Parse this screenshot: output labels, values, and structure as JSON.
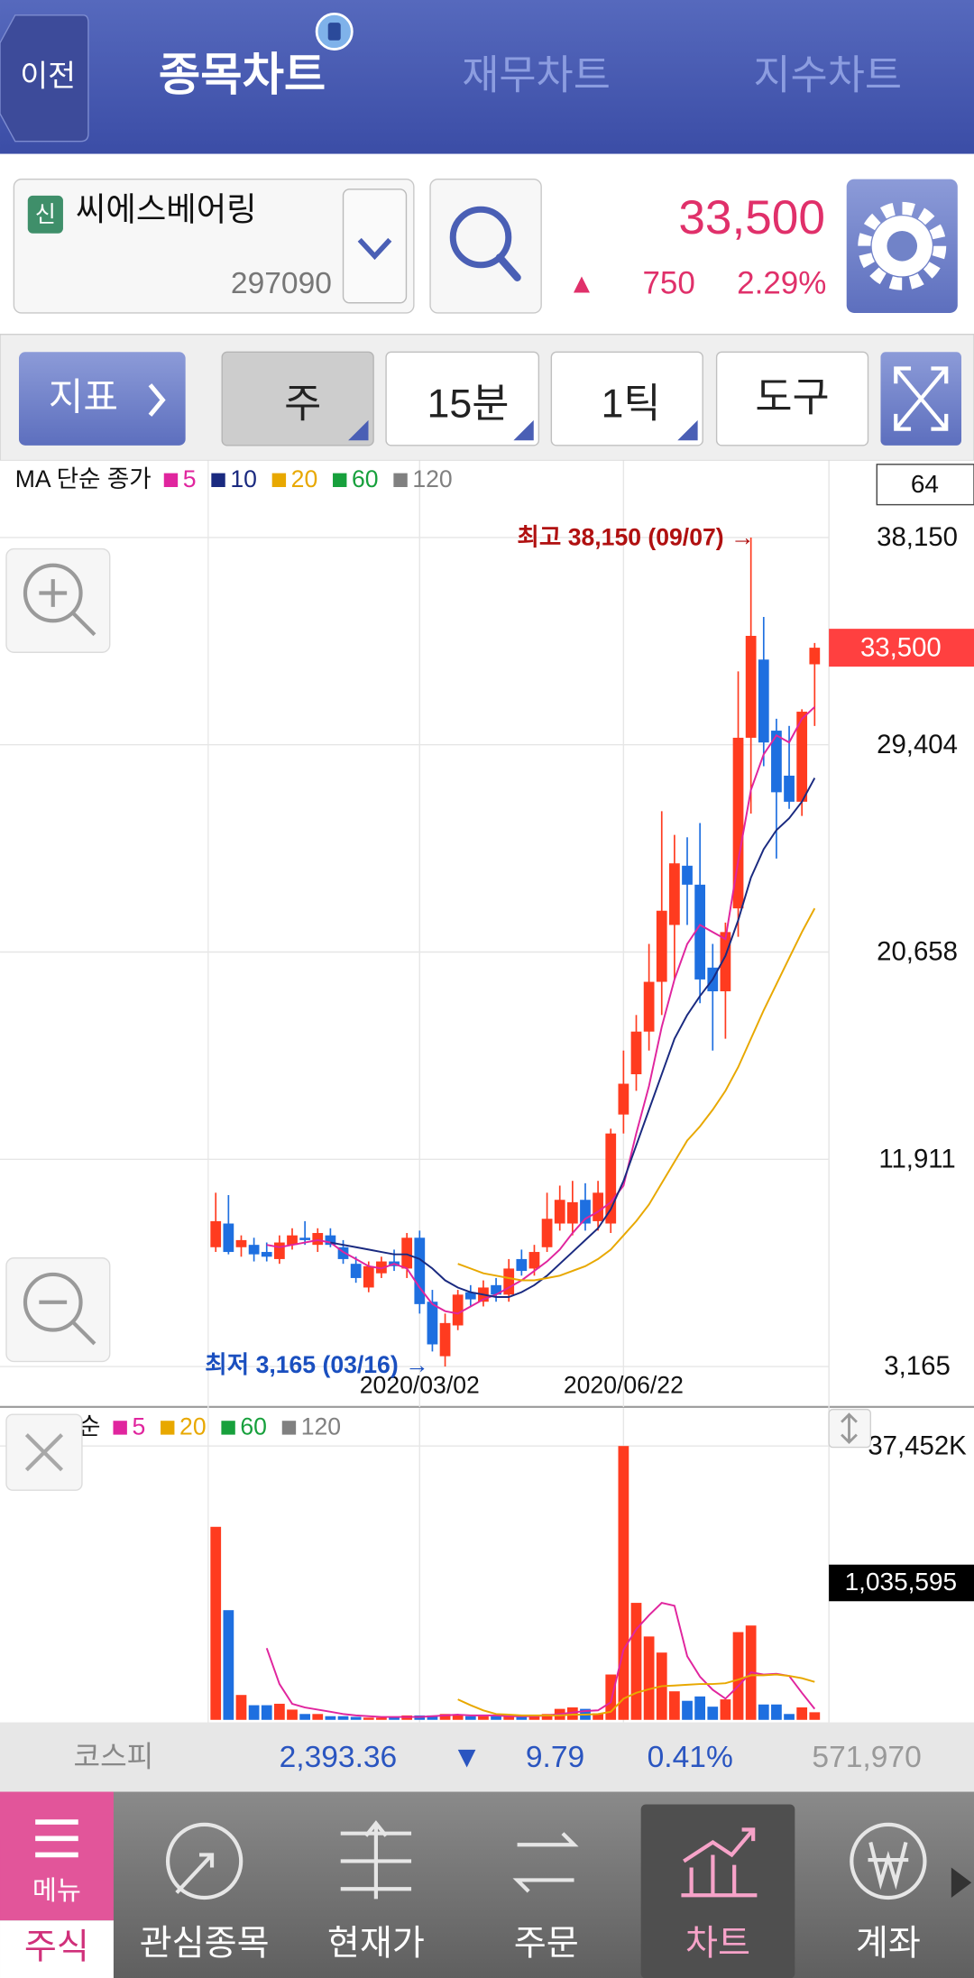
{
  "header": {
    "back": "이전",
    "tabs": [
      "종목차트",
      "재무차트",
      "지수차트"
    ]
  },
  "stock": {
    "badge": "신",
    "name": "씨에스베어링",
    "code": "297090",
    "price": "33,500",
    "change_sign": "▲",
    "change": "750",
    "change_pct": "2.29%"
  },
  "toolbar": {
    "indicator": "지표",
    "buttons": [
      "주",
      "15분",
      "1틱",
      "도구"
    ]
  },
  "chart_data": [
    {
      "type": "candlestick",
      "legend_title": "MA 단순 종가",
      "categories": [
        null,
        null,
        null,
        null,
        null,
        null,
        null,
        null,
        null,
        null,
        null,
        null,
        null,
        null,
        null,
        null,
        "2020/03/02",
        null,
        null,
        null,
        null,
        null,
        null,
        null,
        null,
        null,
        null,
        null,
        null,
        null,
        null,
        null,
        "2020/06/22",
        null,
        null,
        null,
        null,
        null,
        null,
        null,
        null,
        null,
        null,
        null,
        null,
        null,
        null,
        null
      ],
      "open": [
        8200,
        9200,
        8200,
        8300,
        8000,
        7700,
        8300,
        8600,
        8300,
        8700,
        8200,
        7500,
        6500,
        7100,
        7600,
        7300,
        8600,
        5900,
        3600,
        4900,
        6300,
        5900,
        6600,
        6200,
        7700,
        7300,
        8200,
        9200,
        9200,
        10200,
        9300,
        9200,
        13800,
        15500,
        17300,
        19400,
        21800,
        24300,
        23500,
        20000,
        19000,
        22500,
        29700,
        33000,
        30000,
        28100,
        27000,
        32800
      ],
      "high": [
        10500,
        10400,
        8700,
        8600,
        8400,
        8700,
        9000,
        9300,
        9000,
        9000,
        8500,
        7800,
        7600,
        7800,
        8100,
        8800,
        8900,
        6400,
        5400,
        6400,
        6600,
        6800,
        6900,
        7700,
        8100,
        8300,
        10500,
        10800,
        11000,
        10900,
        11000,
        13200,
        16500,
        18000,
        21000,
        26600,
        25600,
        25500,
        26100,
        21000,
        21900,
        32500,
        38150,
        34800,
        30500,
        30200,
        30900,
        33700
      ],
      "low": [
        8000,
        7900,
        7800,
        7600,
        7600,
        7500,
        8100,
        8300,
        8000,
        8200,
        7500,
        6700,
        6300,
        6900,
        7200,
        6900,
        5400,
        3800,
        3165,
        4700,
        5700,
        5700,
        5900,
        5900,
        7000,
        7000,
        8000,
        8900,
        8700,
        8900,
        8900,
        8800,
        13000,
        14800,
        16500,
        18000,
        19500,
        21800,
        18500,
        16500,
        17000,
        21300,
        26500,
        28500,
        24600,
        26700,
        26400,
        30200
      ],
      "close": [
        9300,
        8000,
        8500,
        7900,
        7800,
        8400,
        8700,
        8500,
        8800,
        8300,
        7700,
        6900,
        7400,
        7600,
        7400,
        8600,
        5800,
        4100,
        5000,
        6200,
        6000,
        6500,
        6200,
        7300,
        7200,
        8000,
        9400,
        10200,
        10100,
        9200,
        10500,
        13000,
        15100,
        17300,
        19400,
        22400,
        24400,
        23500,
        19500,
        19000,
        21500,
        29700,
        34000,
        29500,
        27400,
        27000,
        30800,
        33500
      ],
      "up_color": "#ff3b1f",
      "down_color": "#1e6fe0",
      "series": [
        {
          "name": "5",
          "color": "#e0259e",
          "values": [
            null,
            null,
            null,
            null,
            8300,
            8200,
            8300,
            8400,
            8500,
            8400,
            8000,
            7700,
            7400,
            7300,
            7500,
            7300,
            6500,
            5800,
            5500,
            5400,
            5700,
            6000,
            6200,
            6500,
            6800,
            7200,
            7600,
            8100,
            8800,
            9400,
            9700,
            10100,
            10800,
            13000,
            15000,
            17500,
            19500,
            21000,
            21800,
            21500,
            21200,
            24500,
            27500,
            29000,
            29800,
            29500,
            30500,
            31000
          ]
        },
        {
          "name": "10",
          "color": "#1a2a80",
          "values": [
            null,
            null,
            null,
            null,
            null,
            null,
            null,
            null,
            null,
            8400,
            8300,
            8200,
            8100,
            8000,
            7900,
            7900,
            7700,
            7300,
            6800,
            6500,
            6300,
            6200,
            6100,
            6100,
            6300,
            6600,
            7000,
            7500,
            8000,
            8500,
            9000,
            9800,
            11000,
            12500,
            14000,
            15500,
            17000,
            18000,
            18800,
            19500,
            20500,
            22000,
            23800,
            25000,
            25800,
            26300,
            27000,
            28000
          ]
        },
        {
          "name": "20",
          "color": "#e8a800",
          "values": [
            null,
            null,
            null,
            null,
            null,
            null,
            null,
            null,
            null,
            null,
            null,
            null,
            null,
            null,
            null,
            null,
            null,
            null,
            null,
            7500,
            7300,
            7100,
            7000,
            6900,
            6800,
            6800,
            6900,
            7000,
            7200,
            7400,
            7700,
            8100,
            8700,
            9300,
            10000,
            10900,
            11800,
            12700,
            13300,
            14000,
            14800,
            15800,
            17000,
            18200,
            19300,
            20400,
            21500,
            22500
          ]
        },
        {
          "name": "60",
          "color": "#17a03c",
          "values": [
            null,
            null,
            null,
            null,
            null,
            null,
            null,
            null,
            null,
            null,
            null,
            null,
            null,
            null,
            null,
            null,
            null,
            null,
            null,
            null,
            null,
            null,
            null,
            null,
            null,
            null,
            null,
            null,
            null,
            null,
            null,
            null,
            null,
            null,
            null,
            null,
            null,
            null,
            null,
            null,
            null,
            null,
            null,
            null,
            null,
            null,
            null,
            null
          ]
        },
        {
          "name": "120",
          "color": "#808080",
          "values": [
            null,
            null,
            null,
            null,
            null,
            null,
            null,
            null,
            null,
            null,
            null,
            null,
            null,
            null,
            null,
            null,
            null,
            null,
            null,
            null,
            null,
            null,
            null,
            null,
            null,
            null,
            null,
            null,
            null,
            null,
            null,
            null,
            null,
            null,
            null,
            null,
            null,
            null,
            null,
            null,
            null,
            null,
            null,
            null,
            null,
            null,
            null,
            null
          ]
        }
      ],
      "ylim": [
        3165,
        38150
      ],
      "yticks": [
        {
          "value": 3165,
          "label": "3,165"
        },
        {
          "value": 11911,
          "label": "11,911"
        },
        {
          "value": 20658,
          "label": "20,658"
        },
        {
          "value": 29404,
          "label": "29,404"
        },
        {
          "value": 38150,
          "label": "38,150"
        }
      ],
      "grid": true,
      "box_label": "64",
      "current_price": {
        "value": 33500,
        "label": "33,500"
      },
      "annotations": [
        {
          "text": "최고 38,150 (09/07) →",
          "color": "#b01010"
        },
        {
          "text": "최저 3,165 (03/16) →",
          "color": "#1a4fbf"
        }
      ]
    },
    {
      "type": "bar",
      "legend_title": "MA 단순",
      "values": [
        26400000,
        15000000,
        3400000,
        2000000,
        2000000,
        2200000,
        1400000,
        800000,
        800000,
        500000,
        500000,
        400000,
        300000,
        300000,
        300000,
        600000,
        600000,
        600000,
        800000,
        700000,
        500000,
        500000,
        500000,
        500000,
        500000,
        600000,
        800000,
        1500000,
        1700000,
        1500000,
        900000,
        6200000,
        37452000,
        16000000,
        11400000,
        9200000,
        3900000,
        2600000,
        3200000,
        1800000,
        2800000,
        12000000,
        12900000,
        2100000,
        2100000,
        800000,
        1700000,
        1035595
      ],
      "series": [
        {
          "name": "5",
          "color": "#e0259e",
          "values": [
            null,
            null,
            null,
            null,
            9800000,
            4900000,
            2200000,
            1700000,
            1400000,
            1100000,
            800000,
            600000,
            500000,
            400000,
            400000,
            400000,
            400000,
            500000,
            600000,
            700000,
            600000,
            600000,
            600000,
            500000,
            500000,
            500000,
            600000,
            800000,
            1000000,
            1200000,
            1300000,
            2400000,
            9600000,
            12400000,
            14300000,
            16000000,
            15600000,
            8700000,
            5900000,
            4100000,
            2900000,
            4600000,
            6500000,
            6200000,
            6300000,
            6000000,
            3700000,
            1500000
          ]
        },
        {
          "name": "20",
          "color": "#e8a800",
          "values": [
            null,
            null,
            null,
            null,
            null,
            null,
            null,
            null,
            null,
            null,
            null,
            null,
            null,
            null,
            null,
            null,
            null,
            null,
            null,
            2800000,
            2000000,
            1300000,
            800000,
            700000,
            600000,
            600000,
            600000,
            600000,
            700000,
            700000,
            800000,
            1100000,
            2900000,
            3700000,
            4200000,
            4600000,
            4700000,
            4800000,
            4900000,
            4900000,
            5000000,
            5500000,
            6100000,
            6100000,
            6200000,
            6000000,
            5700000,
            5200000
          ]
        },
        {
          "name": "60",
          "color": "#17a03c",
          "values": [
            null,
            null,
            null,
            null,
            null,
            null,
            null,
            null,
            null,
            null,
            null,
            null,
            null,
            null,
            null,
            null,
            null,
            null,
            null,
            null,
            null,
            null,
            null,
            null,
            null,
            null,
            null,
            null,
            null,
            null,
            null,
            null,
            null,
            null,
            null,
            null,
            null,
            null,
            null,
            null,
            null,
            null,
            null,
            null,
            null,
            null,
            null,
            null
          ]
        },
        {
          "name": "120",
          "color": "#808080",
          "values": [
            null,
            null,
            null,
            null,
            null,
            null,
            null,
            null,
            null,
            null,
            null,
            null,
            null,
            null,
            null,
            null,
            null,
            null,
            null,
            null,
            null,
            null,
            null,
            null,
            null,
            null,
            null,
            null,
            null,
            null,
            null,
            null,
            null,
            null,
            null,
            null,
            null,
            null,
            null,
            null,
            null,
            null,
            null,
            null,
            null,
            null,
            null,
            null
          ]
        }
      ],
      "ylim": [
        0,
        37452000
      ],
      "yticks": [
        {
          "value": 37452000,
          "label": "37,452K"
        }
      ],
      "grid": true,
      "current_label": "1,035,595"
    }
  ],
  "index_bar": {
    "name": "코스피",
    "value": "2,393.36",
    "sign": "▼",
    "change": "9.79",
    "change_pct": "0.41%",
    "volume": "571,970"
  },
  "nav": {
    "menu": "메뉴",
    "section": "주식",
    "items": [
      "관심종목",
      "현재가",
      "주문",
      "차트",
      "계좌"
    ]
  }
}
